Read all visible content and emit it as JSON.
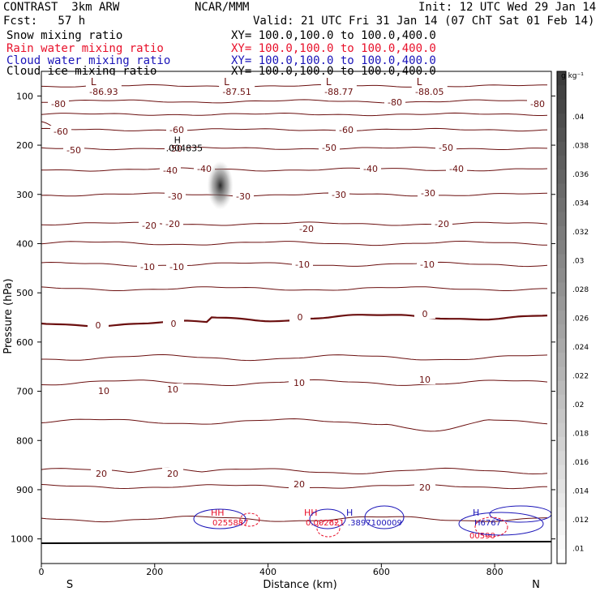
{
  "header": {
    "model": "CONTRAST  3km ARW",
    "org": "NCAR/MMM",
    "init": "Init: 12 UTC Wed 29 Jan 14",
    "fcst": "Fcst:   57 h",
    "valid": "Valid: 21 UTC Fri 31 Jan 14 (07 ChT Sat 01 Feb 14)"
  },
  "fields": [
    {
      "name": "Snow mixing ratio",
      "xy": "XY= 100.0,100.0 to 100.0,400.0",
      "color": "#000000"
    },
    {
      "name": "Rain water mixing ratio",
      "xy": "XY= 100.0,100.0 to 100.0,400.0",
      "color": "#e8102a"
    },
    {
      "name": "Cloud water mixing ratio",
      "xy": "XY= 100.0,100.0 to 100.0,400.0",
      "color": "#1a14b8"
    },
    {
      "name": "Cloud ice mixing ratio",
      "xy": "XY= 100.0,100.0 to 100.0,400.0",
      "color": "#000000"
    }
  ],
  "chart_data": {
    "type": "cross-section contour",
    "xlabel": "Distance (km)",
    "ylabel": "Pressure (hPa)",
    "xlim": [
      0,
      900
    ],
    "ylim": [
      1050,
      50
    ],
    "x_ticks": [
      "0",
      "200",
      "400",
      "600",
      "800"
    ],
    "x_tick_values": [
      0,
      200,
      400,
      600,
      800
    ],
    "y_ticks": [
      "100",
      "200",
      "300",
      "400",
      "500",
      "600",
      "700",
      "800",
      "900",
      "1000"
    ],
    "y_tick_values": [
      100,
      200,
      300,
      400,
      500,
      600,
      700,
      800,
      900,
      1000
    ],
    "direction_left": "S",
    "direction_right": "N",
    "colorbar": {
      "unit": "g kg⁻¹",
      "labels": [
        ".04",
        ".038",
        ".036",
        ".034",
        ".032",
        ".03",
        ".028",
        ".026",
        ".024",
        ".022",
        ".02",
        ".018",
        ".016",
        ".014",
        ".012",
        ".01"
      ]
    },
    "minima": [
      {
        "x": 110,
        "value": "-86.93"
      },
      {
        "x": 345,
        "value": "-87.51"
      },
      {
        "x": 525,
        "value": "-88.77"
      },
      {
        "x": 685,
        "value": "-88.05"
      }
    ],
    "snow_max": {
      "x": 320,
      "p": 295,
      "label": "H",
      "value": ".004835"
    },
    "contour_labels": [
      "-80",
      "-80",
      "-80",
      "-60",
      "-60",
      "-60",
      "-50",
      "-50",
      "-50",
      "-50",
      "-40",
      "-40",
      "-40",
      "-40",
      "-30",
      "-30",
      "-30",
      "-30",
      "-20",
      "-20",
      "-20",
      "-20",
      "-10",
      "-10",
      "-10",
      "-10",
      "0",
      "0",
      "0",
      "0",
      "10",
      "10",
      "10",
      "10",
      "20",
      "20",
      "20",
      "20"
    ],
    "near_surface_labels": [
      {
        "mark": "HH",
        "value": "0255887",
        "color": "#e8102a"
      },
      {
        "mark": "HH",
        "value": "0.002621",
        "color": "#e8102a"
      },
      {
        "mark": "H",
        "value": ".3897100009",
        "color": "#1a14b8"
      },
      {
        "mark": "H",
        "value": "H6767",
        "color": "#1a14b8"
      },
      {
        "mark": "",
        "value": "00590",
        "color": "#e8102a"
      }
    ]
  }
}
